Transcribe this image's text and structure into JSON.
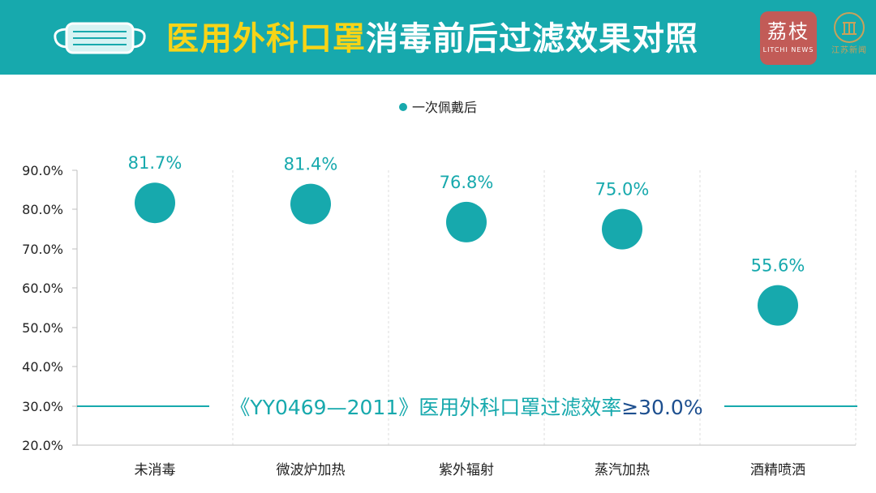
{
  "header": {
    "title_highlight": "医用外科口罩",
    "title_rest": "消毒前后过滤效果对照",
    "logo_cn": "荔枝",
    "logo_en": "LITCHI NEWS",
    "logo2_text": "江苏新闻"
  },
  "colors": {
    "accent": "#17a9ad",
    "title_highlight": "#f7d417",
    "standard_text": "#17a9ad",
    "standard_value": "#1d4f8f"
  },
  "chart_data": {
    "type": "scatter",
    "categories": [
      "未消毒",
      "微波炉加热",
      "紫外辐射",
      "蒸汽加热",
      "酒精喷洒"
    ],
    "series": [
      {
        "name": "一次佩戴后",
        "values": [
          81.7,
          81.4,
          76.8,
          75.0,
          55.6
        ]
      }
    ],
    "data_labels": [
      "81.7%",
      "81.4%",
      "76.8%",
      "75.0%",
      "55.6%"
    ],
    "y_ticks": [
      "20.0%",
      "30.0%",
      "40.0%",
      "50.0%",
      "60.0%",
      "70.0%",
      "80.0%",
      "90.0%"
    ],
    "ylim": [
      20,
      90
    ],
    "legend_position": "top-center",
    "grid": "vertical-dashed",
    "reference_line": {
      "value": 30.0,
      "label": "《YY0469—2011》医用外科口罩过滤效率",
      "label_value": "≥30.0%"
    }
  }
}
